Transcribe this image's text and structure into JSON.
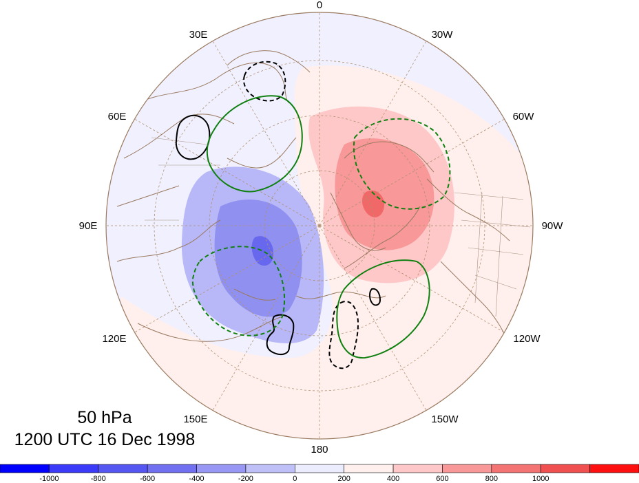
{
  "map": {
    "longitude_labels": [
      "0",
      "30W",
      "60W",
      "90W",
      "120W",
      "150W",
      "180",
      "150E",
      "120E",
      "90E",
      "60E",
      "30E"
    ],
    "title": {
      "level": "50 hPa",
      "time": "1200 UTC 16 Dec 1998"
    },
    "colors": {
      "background_anomaly": "#f0f0ff",
      "weak_positive": "#fff0ee",
      "neg_200": "#b8b8f8",
      "neg_400": "#9090f0",
      "neg_600": "#6868ee",
      "pos_200": "#ffc8c8",
      "pos_400": "#f89898",
      "pos_600": "#f06868",
      "coastline": "#9a7a60",
      "green_contour": "#108010"
    }
  },
  "colorbar": {
    "tick_labels": [
      "-1000",
      "-800",
      "-600",
      "-400",
      "-200",
      "0",
      "200",
      "400",
      "600",
      "800",
      "1000"
    ],
    "colors": [
      "#0000ff",
      "#3a3af8",
      "#5656f2",
      "#7070f0",
      "#9898f4",
      "#c0c0f8",
      "#ececff",
      "#fff0ee",
      "#ffc8c8",
      "#f89898",
      "#f47474",
      "#f05050",
      "#ff1010"
    ]
  }
}
